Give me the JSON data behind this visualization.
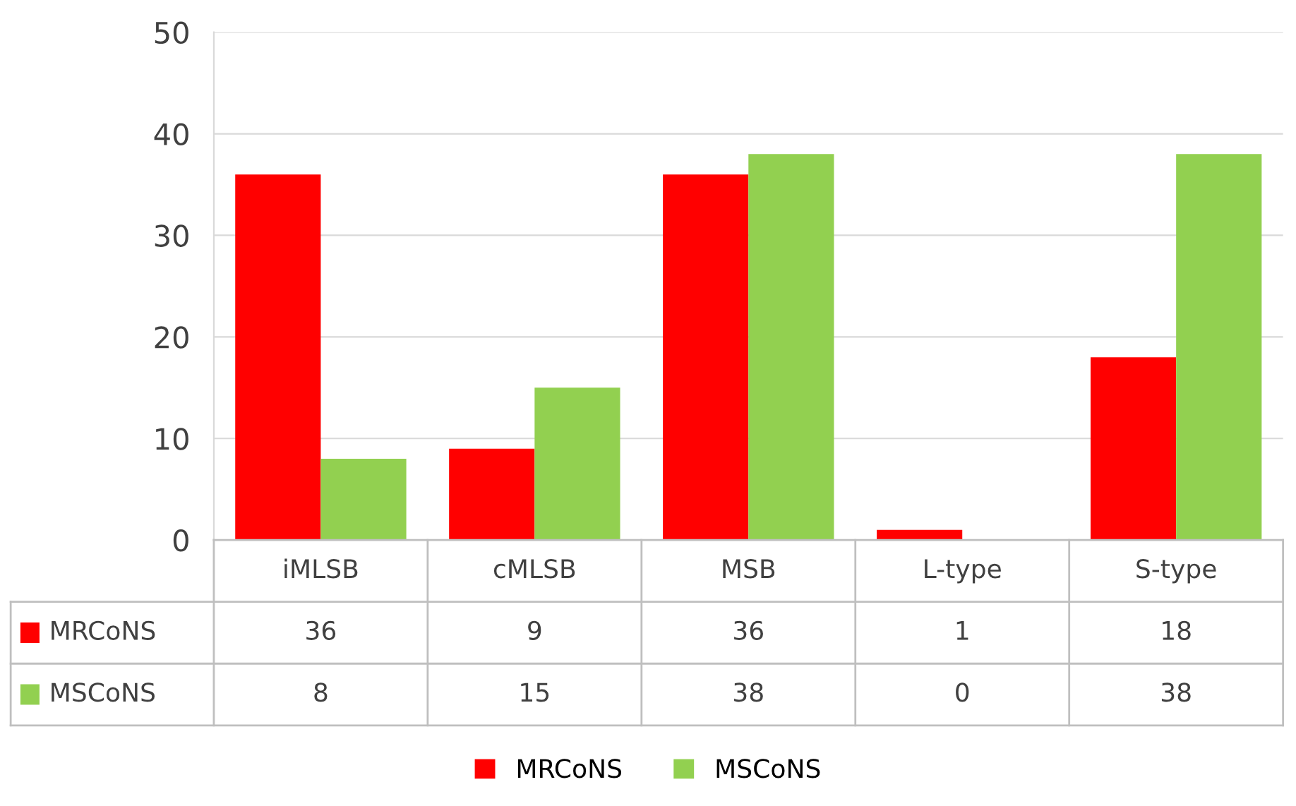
{
  "chart_data": {
    "type": "bar",
    "categories": [
      "iMLSB",
      "cMLSB",
      "MSB",
      "L-type",
      "S-type"
    ],
    "series": [
      {
        "name": "MRCoNS",
        "color": "#ff0000",
        "values": [
          36,
          9,
          36,
          1,
          18
        ]
      },
      {
        "name": "MSCoNS",
        "color": "#92d050",
        "values": [
          8,
          15,
          38,
          0,
          38
        ]
      }
    ],
    "ylim": [
      0,
      50
    ],
    "yticks": [
      0,
      10,
      20,
      30,
      40,
      50
    ],
    "grid": "y",
    "legend": "bottom",
    "data_labels": true
  }
}
